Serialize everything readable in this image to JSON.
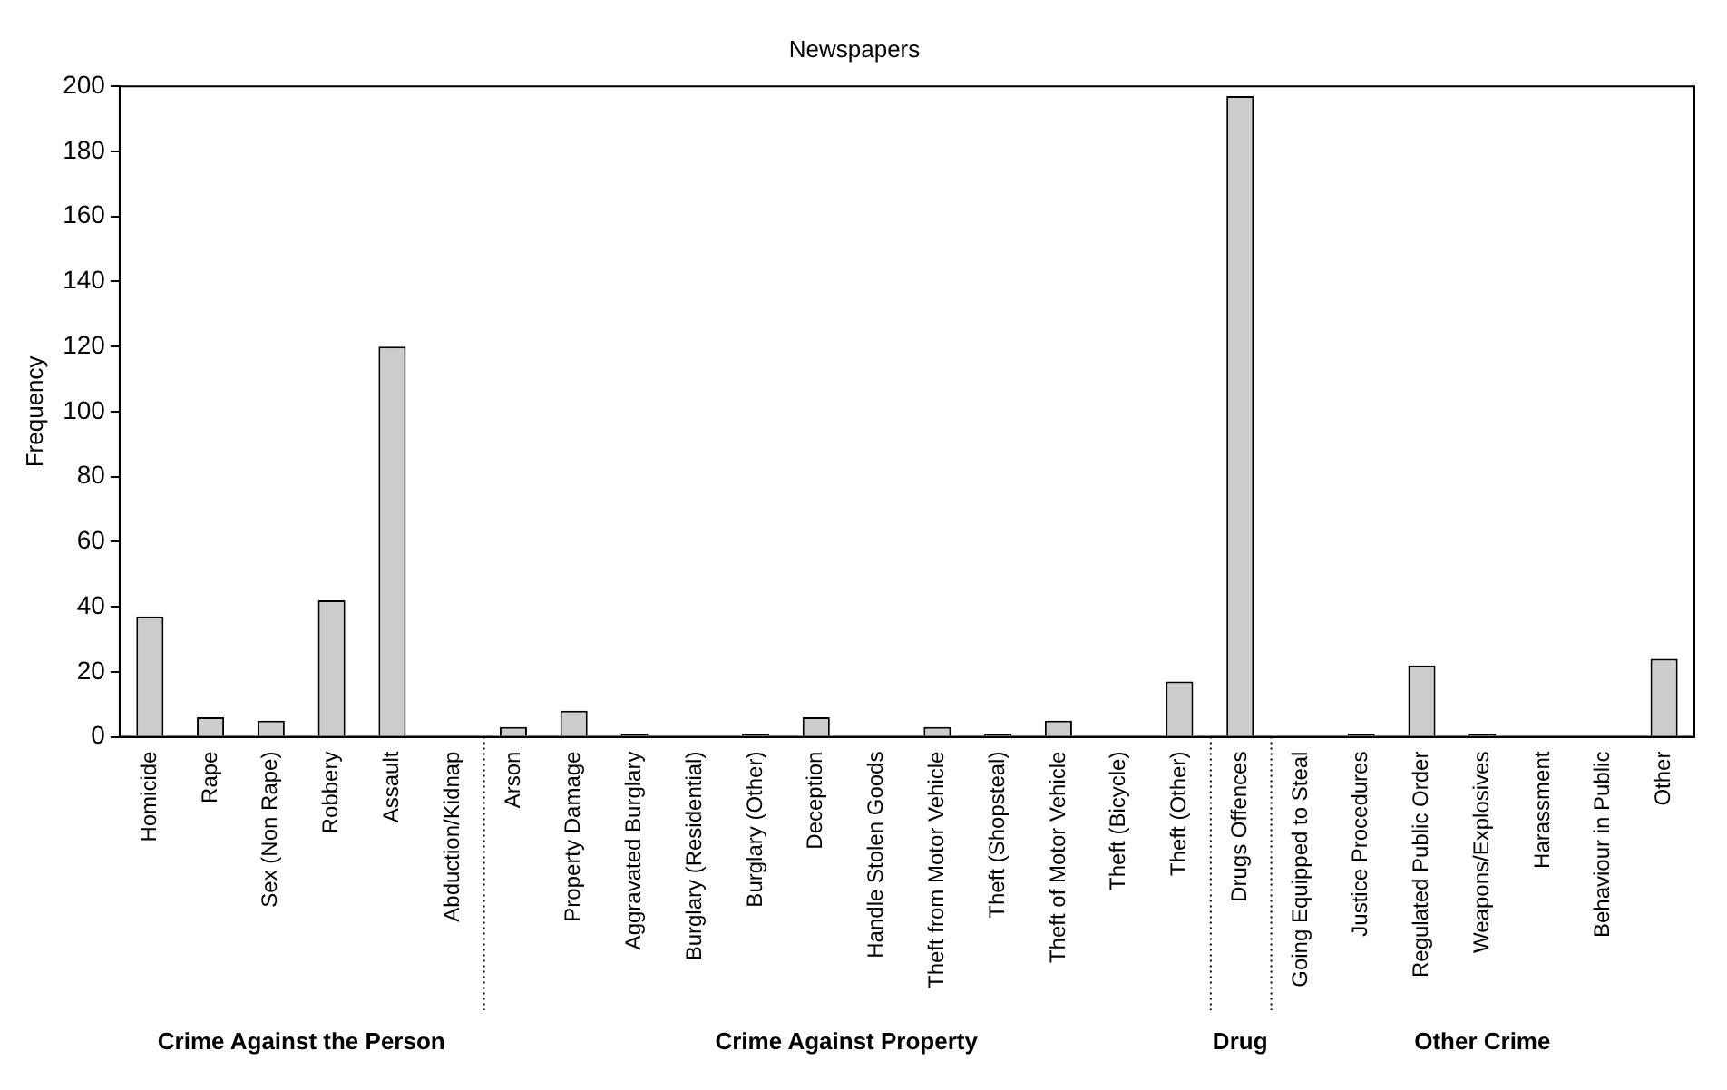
{
  "chart_data": {
    "type": "bar",
    "title": "Newspapers",
    "ylabel": "Frequency",
    "categories": [
      "Homicide",
      "Rape",
      "Sex (Non Rape)",
      "Robbery",
      "Assault",
      "Abduction/Kidnap",
      "Arson",
      "Property Damage",
      "Aggravated Burglary",
      "Burglary (Residential)",
      "Burglary (Other)",
      "Deception",
      "Handle Stolen Goods",
      "Theft from Motor Vehicle",
      "Theft (Shopsteal)",
      "Theft of Motor Vehicle",
      "Theft (Bicycle)",
      "Theft (Other)",
      "Drugs Offences",
      "Going Equipped to Steal",
      "Justice Procedures",
      "Regulated Public Order",
      "Weapons/Explosives",
      "Harassment",
      "Behaviour in Public",
      "Other"
    ],
    "values": [
      37,
      6,
      5,
      42,
      120,
      0,
      3,
      8,
      1,
      0,
      1,
      6,
      0,
      3,
      1,
      5,
      0,
      17,
      197,
      0,
      1,
      22,
      1,
      0,
      0,
      24
    ],
    "color": "#cccccc",
    "ylim": [
      0,
      200
    ],
    "yticks": [
      0,
      20,
      40,
      60,
      80,
      100,
      120,
      140,
      160,
      180,
      200
    ],
    "grid": false,
    "legend": false,
    "annotations": [
      "Crime Against the Person",
      "Crime Against Property",
      "Drug",
      "Other Crime"
    ]
  }
}
